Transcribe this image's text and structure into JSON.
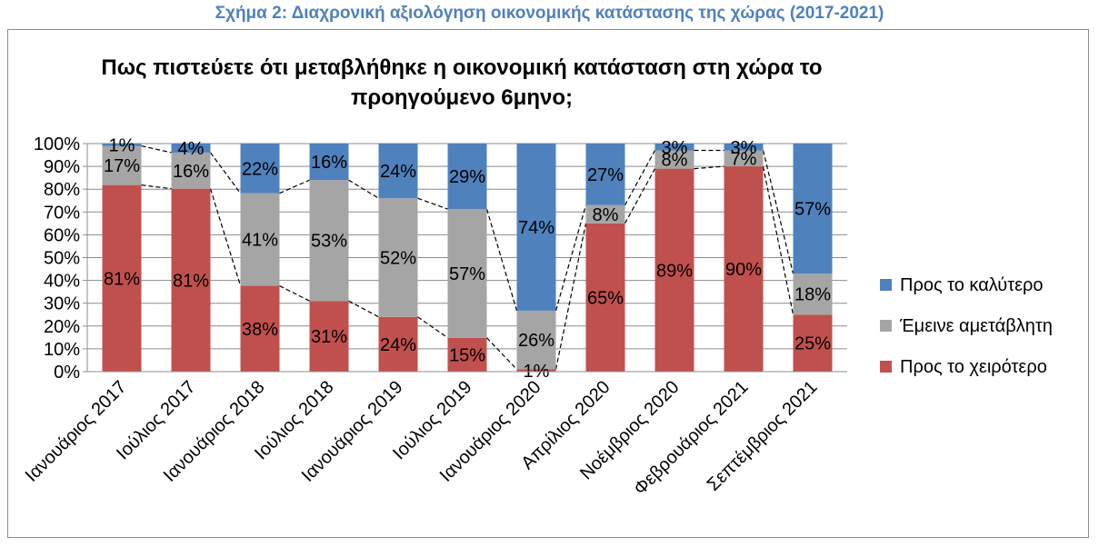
{
  "figure_caption": "Σχήμα 2: Διαχρονική αξιολόγηση οικονομικής κατάστασης της χώρας (2017-2021)",
  "chart_data": {
    "type": "bar",
    "stacked": true,
    "title_lines": [
      "Πως πιστεύετε ότι μεταβλήθηκε η οικονομική κατάσταση στη χώρα το",
      "προηγούμενο 6μηνο;"
    ],
    "categories": [
      "Ιανουάριος 2017",
      "Ιούλιος 2017",
      "Ιανουάριος 2018",
      "Ιούλιος 2018",
      "Ιανουάριος 2019",
      "Ιούλιος 2019",
      "Ιανουάριος 2020",
      "Απρίλιος 2020",
      "Νοέμβριος 2020",
      "Φεβρουάριος 2021",
      "Σεπτέμβριος 2021"
    ],
    "series": [
      {
        "name": "Προς το χειρότερο",
        "color": "#c0504d",
        "values": [
          81,
          81,
          38,
          31,
          24,
          15,
          1,
          65,
          89,
          90,
          25
        ]
      },
      {
        "name": "Έμεινε αμετάβλητη",
        "color": "#a5a5a5",
        "values": [
          17,
          16,
          41,
          53,
          52,
          57,
          26,
          8,
          8,
          7,
          18
        ]
      },
      {
        "name": "Προς το καλύτερο",
        "color": "#4f81bd",
        "values": [
          1,
          4,
          22,
          16,
          24,
          29,
          74,
          27,
          3,
          3,
          57
        ]
      }
    ],
    "legend_order": [
      2,
      1,
      0
    ],
    "legend_position": "right",
    "ylim": [
      0,
      100
    ],
    "yticks": [
      "0%",
      "10%",
      "20%",
      "30%",
      "40%",
      "50%",
      "60%",
      "70%",
      "80%",
      "90%",
      "100%"
    ],
    "gridlines": true,
    "series_lines": "dashed"
  }
}
